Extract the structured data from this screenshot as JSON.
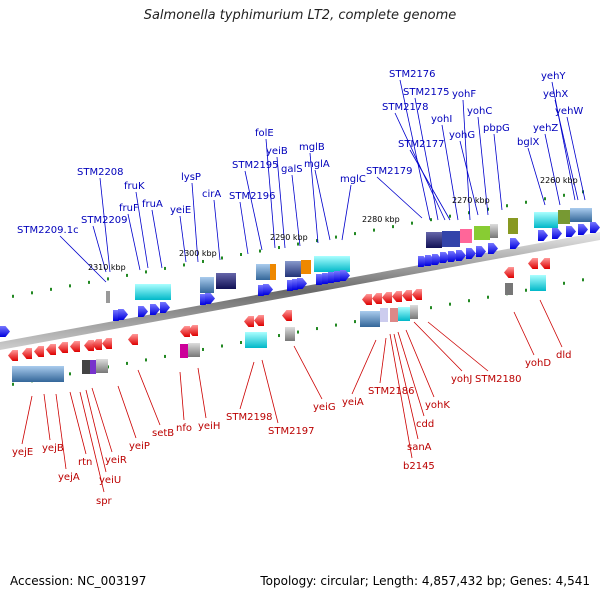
{
  "title": "Salmonella typhimurium LT2, complete genome",
  "footer": {
    "accession": "Accession: NC_003197",
    "summary": "Topology: circular; Length: 4,857,432 bp; Genes: 4,541"
  },
  "colors": {
    "forward_strand": "#0000ee",
    "reverse_strand": "#ee0000",
    "top_label": "#0000bb",
    "bottom_label": "#bb0000",
    "backbone": "#777777",
    "tick_mark": "#228822"
  },
  "ticks": [
    "2260 kbp",
    "2270 kbp",
    "2280 kbp",
    "2290 kbp",
    "2300 kbp",
    "2310 kbp"
  ],
  "top_genes": [
    "STM2176",
    "STM2175",
    "yehY",
    "yehX",
    "yehW",
    "yohF",
    "STM2178",
    "yohC",
    "yohI",
    "yehZ",
    "pbpG",
    "yohG",
    "bglX",
    "STM2177",
    "folE",
    "mglB",
    "yeiB",
    "STM2195",
    "galS",
    "mglA",
    "mglC",
    "STM2179",
    "STM2208",
    "fruK",
    "lysP",
    "fruF",
    "cirA",
    "fruA",
    "yeiE",
    "STM2196",
    "STM2209",
    "STM2209.1c"
  ],
  "bottom_genes": [
    "yejE",
    "yejB",
    "rtn",
    "yejA",
    "yeiR",
    "yeiU",
    "spr",
    "yeiP",
    "setB",
    "nfo",
    "yeiH",
    "STM2198",
    "STM2197",
    "yeiG",
    "yeiA",
    "STM2186",
    "cdd",
    "sanA",
    "b2145",
    "yohK",
    "yohJ",
    "STM2180",
    "yohD",
    "dld"
  ]
}
